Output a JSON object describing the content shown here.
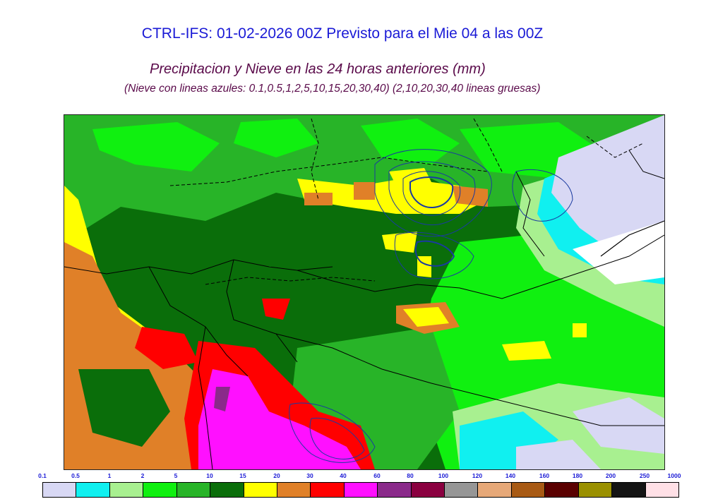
{
  "header": {
    "title": "CTRL-IFS: 01-02-2026 00Z Previsto para el Mie 04 a las 00Z",
    "subtitle": "Precipitacion y Nieve en las 24 horas anteriores (mm)",
    "note": "(Nieve con lineas azules: 0.1,0.5,1,2,5,10,15,20,30,40)  (2,10,20,30,40 lineas gruesas)"
  },
  "legend": {
    "ticks": [
      "0.1",
      "0.5",
      "1",
      "2",
      "5",
      "10",
      "15",
      "20",
      "30",
      "40",
      "60",
      "80",
      "100",
      "120",
      "140",
      "160",
      "180",
      "200",
      "250",
      "1000"
    ],
    "colors": [
      "#d8d8f4",
      "#10f0f0",
      "#a8f090",
      "#10f010",
      "#28b428",
      "#0a6e0a",
      "#ffff00",
      "#e08028",
      "#ff0000",
      "#ff10ff",
      "#8a2a8a",
      "#8a0040",
      "#969696",
      "#e6a878",
      "#a85a14",
      "#5a0000",
      "#9a9000",
      "#141414",
      "#ffe0e6"
    ]
  }
}
